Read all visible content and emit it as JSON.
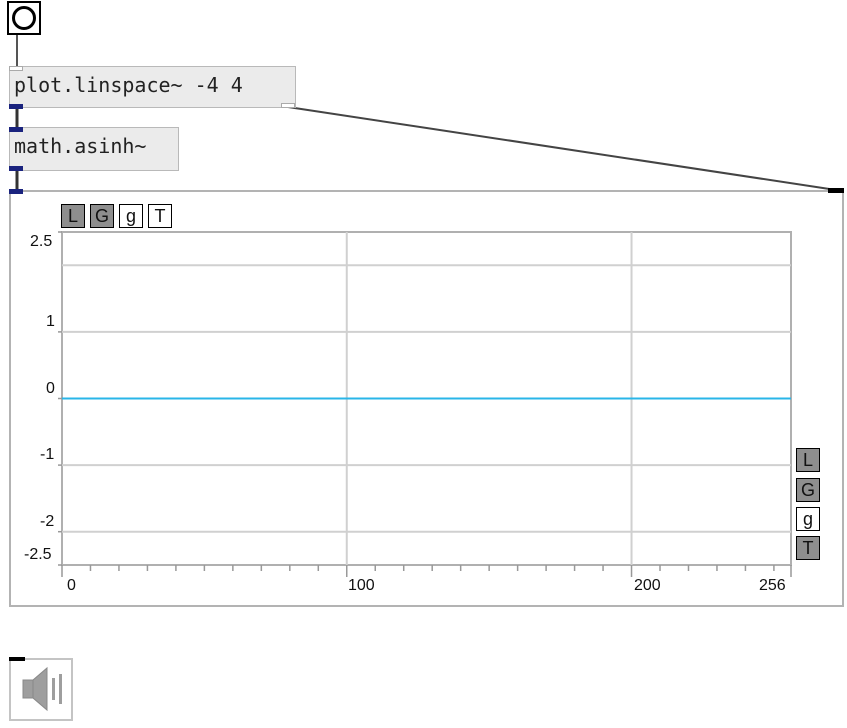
{
  "bang": {
    "icon": "bang-circle-icon"
  },
  "objects": {
    "linspace": "plot.linspace~ -4 4",
    "asinh": "math.asinh~"
  },
  "plot": {
    "top_controls": [
      {
        "label": "L",
        "state": "on"
      },
      {
        "label": "G",
        "state": "on"
      },
      {
        "label": "g",
        "state": "off"
      },
      {
        "label": "T",
        "state": "off"
      }
    ],
    "side_controls": [
      {
        "label": "L",
        "state": "on"
      },
      {
        "label": "G",
        "state": "on"
      },
      {
        "label": "g",
        "state": "off"
      },
      {
        "label": "T",
        "state": "on"
      }
    ]
  },
  "chart_data": {
    "type": "line",
    "x": [
      0,
      256
    ],
    "series": [
      {
        "values": [
          0,
          0
        ],
        "color": "#29b6e8"
      }
    ],
    "xlim": [
      0,
      256
    ],
    "ylim": [
      -2.5,
      2.5
    ],
    "x_ticks": [
      "0",
      "100",
      "200",
      "256"
    ],
    "y_ticks": [
      "2.5",
      "1",
      "0",
      "-1",
      "-2",
      "-2.5"
    ],
    "grid": true
  },
  "dac": {
    "icon": "speaker-icon"
  }
}
